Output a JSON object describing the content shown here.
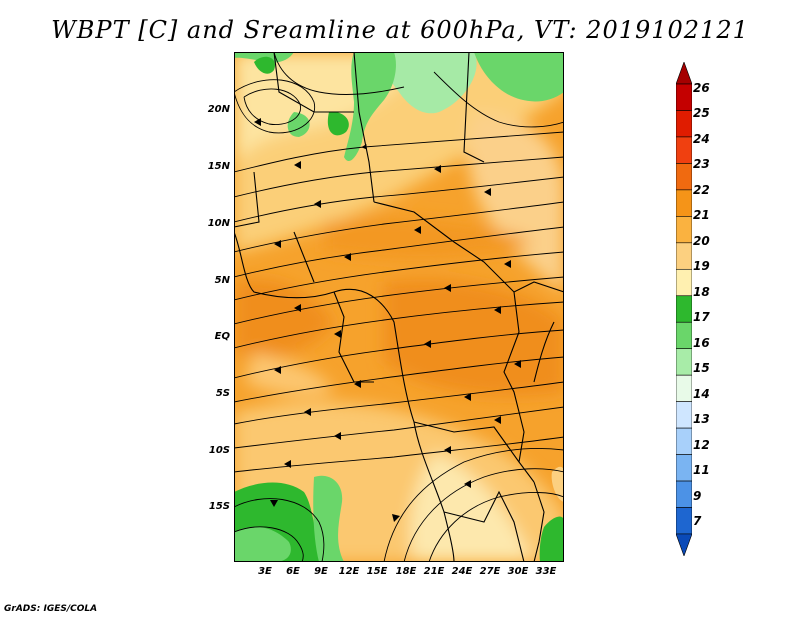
{
  "title": "WBPT [C] and Sreamline at 600hPa, VT: 2019102121",
  "lat_labels": [
    "20N",
    "15N",
    "10N",
    "5N",
    "EQ",
    "5S",
    "10S",
    "15S"
  ],
  "lon_labels": [
    "3E",
    "6E",
    "9E",
    "12E",
    "15E",
    "18E",
    "21E",
    "24E",
    "27E",
    "30E",
    "33E"
  ],
  "colorbar": {
    "labels": [
      "26",
      "25",
      "24",
      "23",
      "22",
      "21",
      "20",
      "19",
      "18",
      "17",
      "16",
      "15",
      "14",
      "13",
      "12",
      "11",
      "9",
      "7"
    ],
    "colors": [
      "#a50000",
      "#c40000",
      "#e01c00",
      "#f04010",
      "#f06a10",
      "#f59418",
      "#fab240",
      "#fcd080",
      "#fff0b0",
      "#2eb82e",
      "#6ad66a",
      "#a8eca8",
      "#e8fae8",
      "#cfe6ff",
      "#a8d0fa",
      "#7ab4f2",
      "#4c92e6",
      "#1e66d0",
      "#0a4ab8"
    ]
  },
  "credit": "GrADS: IGES/COLA"
}
